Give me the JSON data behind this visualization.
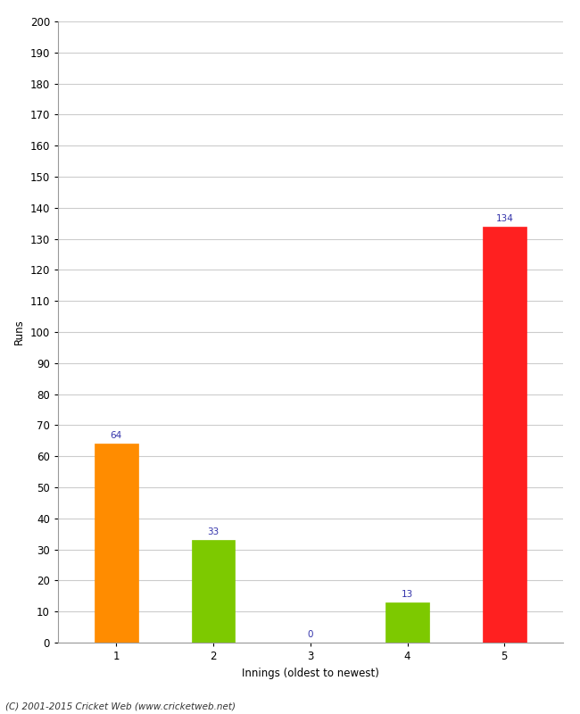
{
  "categories": [
    1,
    2,
    3,
    4,
    5
  ],
  "values": [
    64,
    33,
    0,
    13,
    134
  ],
  "bar_colors": [
    "#ff8c00",
    "#7dc900",
    "#7dc900",
    "#7dc900",
    "#ff2020"
  ],
  "ylabel": "Runs",
  "xlabel": "Innings (oldest to newest)",
  "ylim": [
    0,
    200
  ],
  "yticks": [
    0,
    10,
    20,
    30,
    40,
    50,
    60,
    70,
    80,
    90,
    100,
    110,
    120,
    130,
    140,
    150,
    160,
    170,
    180,
    190,
    200
  ],
  "label_color": "#3333aa",
  "label_fontsize": 7.5,
  "axis_label_fontsize": 8.5,
  "tick_fontsize": 8.5,
  "footer": "(C) 2001-2015 Cricket Web (www.cricketweb.net)",
  "background_color": "#ffffff",
  "grid_color": "#cccccc",
  "bar_width": 0.45
}
